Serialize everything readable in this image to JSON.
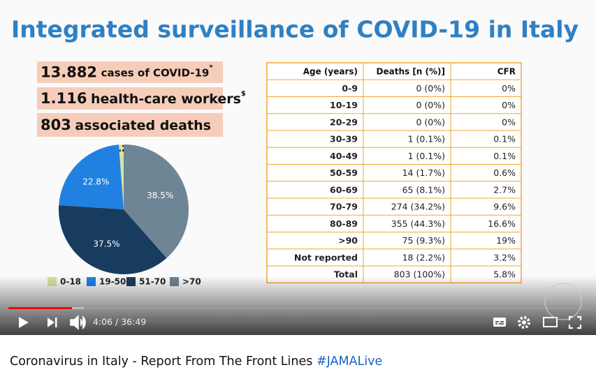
{
  "slide": {
    "title": "Integrated surveillance of COVID-19 in Italy",
    "stats": [
      {
        "number": "13.882",
        "text": "cases of COVID-19",
        "note": "*"
      },
      {
        "number": "1.116",
        "text": "health-care workers",
        "note": "$"
      },
      {
        "number": "803",
        "text": "associated deaths"
      }
    ]
  },
  "chart_data": {
    "type": "pie",
    "categories": [
      "0-18",
      "19-50",
      "51-70",
      ">70"
    ],
    "values": [
      1.2,
      22.8,
      37.5,
      38.5
    ],
    "value_labels": [
      "1.2%",
      "22.8%",
      "37.5%",
      "38.5%"
    ],
    "colors": [
      "#d8e2a4",
      "#2181e0",
      "#173c5e",
      "#6e8595"
    ]
  },
  "table": {
    "header": [
      "Age (years)",
      "Deaths [n (%)]",
      "CFR"
    ],
    "rows": [
      [
        "0-9",
        "0 (0%)",
        "0%"
      ],
      [
        "10-19",
        "0 (0%)",
        "0%"
      ],
      [
        "20-29",
        "0 (0%)",
        "0%"
      ],
      [
        "30-39",
        "1 (0.1%)",
        "0.1%"
      ],
      [
        "40-49",
        "1 (0.1%)",
        "0.1%"
      ],
      [
        "50-59",
        "14 (1.7%)",
        "0.6%"
      ],
      [
        "60-69",
        "65 (8.1%)",
        "2.7%"
      ],
      [
        "70-79",
        "274 (34.2%)",
        "9.6%"
      ],
      [
        "80-89",
        "355 (44.3%)",
        "16.6%"
      ],
      [
        ">90",
        "75 (9.3%)",
        "19%"
      ],
      [
        "Not reported",
        "18 (2.2%)",
        "3.2%"
      ],
      [
        "Total",
        "803 (100%)",
        "5.8%"
      ]
    ]
  },
  "player": {
    "time": "4:06 / 36:49"
  },
  "video": {
    "title": "Coronavirus in Italy - Report From The Front Lines",
    "hashtag": "#JAMALive"
  }
}
